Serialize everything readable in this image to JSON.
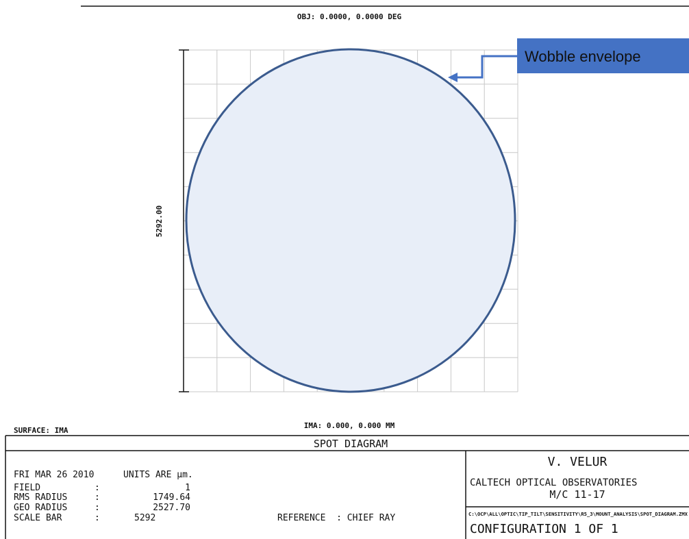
{
  "header": {
    "field_angle": "OBJ: 0.0000, 0.0000 DEG"
  },
  "plot": {
    "scale_label": "5292.00",
    "image_coords": "IMA: 0.000, 0.000 MM",
    "surface": "SURFACE: IMA",
    "spots": "dense uniform grid of ray intercepts filling circular footprint"
  },
  "callout": {
    "text": "Wobble envelope",
    "box_color": "#4472c4",
    "text_color": "#111111",
    "arrow_color": "#4472c4"
  },
  "colors": {
    "envelope_stroke": "#3b5b8e",
    "envelope_fill": "#e8eef8",
    "grid": "#c8c8c8",
    "spots": "#2a4fc9"
  },
  "footer": {
    "title": "SPOT DIAGRAM",
    "date": "FRI MAR 26 2010",
    "units": "UNITS ARE µm.",
    "rows": [
      {
        "label": "FIELD",
        "value": "1"
      },
      {
        "label": "RMS RADIUS",
        "value": "1749.64"
      },
      {
        "label": "GEO RADIUS",
        "value": "2527.70"
      },
      {
        "label": "SCALE BAR",
        "value": "5292"
      }
    ],
    "reference": "REFERENCE  : CHIEF RAY",
    "author": "V. VELUR",
    "organization": "CALTECH OPTICAL OBSERVATORIES",
    "mc_label": "M/C 11-17",
    "file_path": "C:\\OCP\\ALL\\OPTIC\\TIP_TILT\\SENSITIVITY\\R5_3\\MOUNT_ANALYSIS\\SPOT_DIAGRAM.ZMX",
    "configuration": "CONFIGURATION 1 OF 1"
  }
}
